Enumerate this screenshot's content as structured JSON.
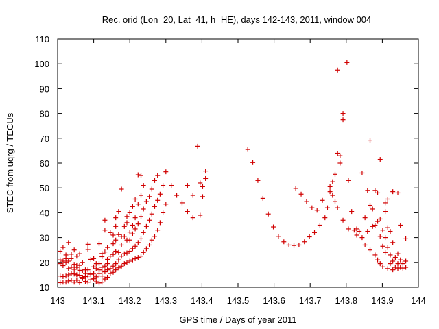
{
  "chart_data": {
    "type": "scatter",
    "title": "Rec. orid (Lon=20, Lat=41, h=HE), days 142-143, 2011, window 004",
    "xlabel": "GPS time / Days of year 2011",
    "ylabel": "STEC from uqrg / TECUs",
    "xlim": [
      143,
      144
    ],
    "ylim": [
      10,
      110
    ],
    "xticks": [
      143,
      143.1,
      143.2,
      143.3,
      143.4,
      143.5,
      143.6,
      143.7,
      143.8,
      143.9,
      144
    ],
    "xtick_labels": [
      "143",
      "143.1",
      "143.2",
      "143.3",
      "143.4",
      "143.5",
      "143.6",
      "143.7",
      "143.8",
      "143.9",
      "144"
    ],
    "yticks": [
      10,
      20,
      30,
      40,
      50,
      60,
      70,
      80,
      90,
      100,
      110
    ],
    "ytick_labels": [
      "10",
      "20",
      "30",
      "40",
      "50",
      "60",
      "70",
      "80",
      "90",
      "100",
      "110"
    ],
    "marker": "+",
    "marker_color": "#d00000",
    "grid": false,
    "legend": "none",
    "points": [
      [
        143.007,
        11.8
      ],
      [
        143.007,
        14.5
      ],
      [
        143.007,
        19.5
      ],
      [
        143.007,
        21.0
      ],
      [
        143.007,
        24.5
      ],
      [
        143.015,
        12.0
      ],
      [
        143.015,
        14.3
      ],
      [
        143.015,
        18.7
      ],
      [
        143.015,
        20.5
      ],
      [
        143.015,
        26.0
      ],
      [
        143.023,
        12.0
      ],
      [
        143.023,
        14.5
      ],
      [
        143.023,
        20.0
      ],
      [
        143.023,
        21.5
      ],
      [
        143.023,
        23.0
      ],
      [
        143.03,
        12.5
      ],
      [
        143.03,
        15.0
      ],
      [
        143.03,
        17.5
      ],
      [
        143.03,
        20.5
      ],
      [
        143.03,
        28.0
      ],
      [
        143.038,
        12.8
      ],
      [
        143.038,
        15.5
      ],
      [
        143.038,
        18.0
      ],
      [
        143.038,
        21.5
      ],
      [
        143.038,
        23.3
      ],
      [
        143.046,
        12.0
      ],
      [
        143.046,
        15.3
      ],
      [
        143.046,
        17.2
      ],
      [
        143.046,
        19.2
      ],
      [
        143.046,
        25.0
      ],
      [
        143.053,
        12.8
      ],
      [
        143.053,
        15.0
      ],
      [
        143.053,
        18.0
      ],
      [
        143.053,
        19.0
      ],
      [
        143.053,
        22.5
      ],
      [
        143.061,
        11.8
      ],
      [
        143.061,
        14.8
      ],
      [
        143.061,
        16.8
      ],
      [
        143.061,
        18.8
      ],
      [
        143.061,
        23.5
      ],
      [
        143.069,
        13.5
      ],
      [
        143.069,
        14.0
      ],
      [
        143.069,
        16.5
      ],
      [
        143.069,
        20.0
      ],
      [
        143.077,
        12.3
      ],
      [
        143.077,
        14.3
      ],
      [
        143.077,
        15.5
      ],
      [
        143.077,
        17.0
      ],
      [
        143.084,
        12.0
      ],
      [
        143.084,
        14.5
      ],
      [
        143.084,
        17.0
      ],
      [
        143.084,
        25.2
      ],
      [
        143.084,
        27.3
      ],
      [
        143.092,
        13.0
      ],
      [
        143.092,
        15.2
      ],
      [
        143.092,
        15.5
      ],
      [
        143.092,
        21.2
      ],
      [
        143.1,
        13.4
      ],
      [
        143.1,
        15.5
      ],
      [
        143.1,
        18.2
      ],
      [
        143.1,
        21.5
      ],
      [
        143.107,
        12.2
      ],
      [
        143.107,
        14.2
      ],
      [
        143.107,
        17.5
      ],
      [
        143.107,
        19.5
      ],
      [
        143.115,
        11.7
      ],
      [
        143.115,
        15.5
      ],
      [
        143.115,
        17.0
      ],
      [
        143.115,
        19.5
      ],
      [
        143.115,
        27.5
      ],
      [
        143.123,
        12.0
      ],
      [
        143.123,
        14.5
      ],
      [
        143.123,
        16.5
      ],
      [
        143.123,
        18.0
      ],
      [
        143.123,
        22.3
      ],
      [
        143.123,
        23.6
      ],
      [
        143.131,
        13.3
      ],
      [
        143.131,
        16.2
      ],
      [
        143.131,
        18.5
      ],
      [
        143.131,
        24.2
      ],
      [
        143.131,
        37.0
      ],
      [
        143.131,
        33.0
      ],
      [
        143.138,
        14.0
      ],
      [
        143.138,
        17.0
      ],
      [
        143.138,
        19.5
      ],
      [
        143.138,
        21.2
      ],
      [
        143.138,
        26.0
      ],
      [
        143.146,
        15.5
      ],
      [
        143.146,
        17.5
      ],
      [
        143.146,
        22.5
      ],
      [
        143.146,
        32.0
      ],
      [
        143.154,
        16.0
      ],
      [
        143.154,
        18.5
      ],
      [
        143.154,
        23.2
      ],
      [
        143.154,
        27.5
      ],
      [
        143.154,
        31.0
      ],
      [
        143.161,
        17.0
      ],
      [
        143.161,
        19.5
      ],
      [
        143.161,
        24.5
      ],
      [
        143.161,
        29.0
      ],
      [
        143.161,
        34.5
      ],
      [
        143.161,
        38.0
      ],
      [
        143.169,
        17.8
      ],
      [
        143.169,
        21.0
      ],
      [
        143.169,
        24.0
      ],
      [
        143.169,
        31.2
      ],
      [
        143.169,
        40.5
      ],
      [
        143.177,
        18.5
      ],
      [
        143.177,
        22.5
      ],
      [
        143.177,
        27.0
      ],
      [
        143.177,
        30.5
      ],
      [
        143.177,
        49.5
      ],
      [
        143.185,
        19.5
      ],
      [
        143.185,
        23.5
      ],
      [
        143.185,
        30.5
      ],
      [
        143.185,
        34.5
      ],
      [
        143.192,
        20.0
      ],
      [
        143.192,
        23.8
      ],
      [
        143.192,
        29.0
      ],
      [
        143.192,
        36.0
      ],
      [
        143.192,
        38.5
      ],
      [
        143.2,
        20.5
      ],
      [
        143.2,
        24.5
      ],
      [
        143.2,
        29.0
      ],
      [
        143.2,
        32.2
      ],
      [
        143.2,
        40.0
      ],
      [
        143.208,
        21.0
      ],
      [
        143.208,
        25.5
      ],
      [
        143.208,
        31.5
      ],
      [
        143.208,
        35.0
      ],
      [
        143.208,
        42.5
      ],
      [
        143.215,
        21.5
      ],
      [
        143.215,
        26.5
      ],
      [
        143.215,
        33.5
      ],
      [
        143.215,
        38.0
      ],
      [
        143.215,
        45.5
      ],
      [
        143.223,
        22.0
      ],
      [
        143.223,
        28.0
      ],
      [
        143.223,
        35.5
      ],
      [
        143.223,
        43.5
      ],
      [
        143.223,
        55.3
      ],
      [
        143.231,
        22.5
      ],
      [
        143.231,
        29.5
      ],
      [
        143.231,
        38.5
      ],
      [
        143.231,
        47.0
      ],
      [
        143.231,
        55.0
      ],
      [
        143.238,
        24.0
      ],
      [
        143.238,
        32.0
      ],
      [
        143.238,
        41.5
      ],
      [
        143.238,
        51.0
      ],
      [
        143.246,
        25.5
      ],
      [
        143.246,
        34.5
      ],
      [
        143.246,
        44.5
      ],
      [
        143.254,
        27.0
      ],
      [
        143.254,
        37.0
      ],
      [
        143.254,
        46.5
      ],
      [
        143.261,
        29.0
      ],
      [
        143.261,
        39.5
      ],
      [
        143.261,
        49.5
      ],
      [
        143.269,
        30.5
      ],
      [
        143.269,
        42.5
      ],
      [
        143.269,
        53.0
      ],
      [
        143.277,
        33.0
      ],
      [
        143.277,
        45.0
      ],
      [
        143.277,
        55.0
      ],
      [
        143.284,
        36.0
      ],
      [
        143.284,
        47.5
      ],
      [
        143.292,
        40.0
      ],
      [
        143.292,
        51.0
      ],
      [
        143.3,
        43.5
      ],
      [
        143.3,
        56.5
      ],
      [
        143.315,
        51.0
      ],
      [
        143.33,
        47.0
      ],
      [
        143.345,
        44.0
      ],
      [
        143.36,
        40.5
      ],
      [
        143.36,
        51.0
      ],
      [
        143.375,
        47.0
      ],
      [
        143.375,
        38.0
      ],
      [
        143.388,
        66.8
      ],
      [
        143.395,
        39.0
      ],
      [
        143.395,
        52.0
      ],
      [
        143.402,
        46.5
      ],
      [
        143.402,
        50.5
      ],
      [
        143.41,
        53.8
      ],
      [
        143.41,
        56.8
      ],
      [
        143.527,
        65.5
      ],
      [
        143.541,
        60.2
      ],
      [
        143.555,
        53.0
      ],
      [
        143.569,
        45.8
      ],
      [
        143.584,
        39.5
      ],
      [
        143.598,
        34.3
      ],
      [
        143.612,
        30.5
      ],
      [
        143.627,
        28.3
      ],
      [
        143.641,
        27.0
      ],
      [
        143.655,
        26.8
      ],
      [
        143.66,
        49.8
      ],
      [
        143.669,
        27.0
      ],
      [
        143.675,
        47.5
      ],
      [
        143.684,
        28.3
      ],
      [
        143.69,
        44.5
      ],
      [
        143.698,
        30.3
      ],
      [
        143.705,
        42.0
      ],
      [
        143.712,
        32.0
      ],
      [
        143.719,
        41.0
      ],
      [
        143.727,
        35.0
      ],
      [
        143.734,
        45.0
      ],
      [
        143.741,
        38.0
      ],
      [
        143.748,
        42.0
      ],
      [
        143.755,
        50.5
      ],
      [
        143.755,
        48.5
      ],
      [
        143.762,
        52.5
      ],
      [
        143.762,
        47.0
      ],
      [
        143.769,
        55.5
      ],
      [
        143.769,
        44.5
      ],
      [
        143.776,
        97.5
      ],
      [
        143.776,
        64.0
      ],
      [
        143.776,
        42.0
      ],
      [
        143.783,
        63.0
      ],
      [
        143.783,
        60.0
      ],
      [
        143.791,
        80.0
      ],
      [
        143.791,
        77.5
      ],
      [
        143.791,
        37.0
      ],
      [
        143.802,
        100.5
      ],
      [
        143.806,
        53.0
      ],
      [
        143.806,
        33.5
      ],
      [
        143.815,
        40.5
      ],
      [
        143.822,
        33.0
      ],
      [
        143.829,
        33.5
      ],
      [
        143.829,
        31.0
      ],
      [
        143.836,
        32.5
      ],
      [
        143.844,
        56.0
      ],
      [
        143.844,
        30.0
      ],
      [
        143.852,
        38.0
      ],
      [
        143.852,
        27.0
      ],
      [
        143.859,
        49.0
      ],
      [
        143.859,
        32.5
      ],
      [
        143.866,
        69.0
      ],
      [
        143.866,
        43.0
      ],
      [
        143.866,
        25.0
      ],
      [
        143.873,
        41.5
      ],
      [
        143.873,
        34.5
      ],
      [
        143.88,
        49.0
      ],
      [
        143.88,
        35.0
      ],
      [
        143.88,
        23.0
      ],
      [
        143.887,
        48.0
      ],
      [
        143.887,
        36.5
      ],
      [
        143.887,
        21.0
      ],
      [
        143.894,
        61.5
      ],
      [
        143.894,
        37.5
      ],
      [
        143.894,
        30.5
      ],
      [
        143.894,
        19.5
      ],
      [
        143.901,
        33.0
      ],
      [
        143.901,
        26.5
      ],
      [
        143.901,
        18.2
      ],
      [
        143.908,
        44.0
      ],
      [
        143.908,
        40.5
      ],
      [
        143.908,
        30.0
      ],
      [
        143.908,
        24.0
      ],
      [
        143.915,
        45.5
      ],
      [
        143.915,
        34.0
      ],
      [
        143.915,
        26.0
      ],
      [
        143.915,
        17.5
      ],
      [
        143.922,
        32.5
      ],
      [
        143.922,
        23.0
      ],
      [
        143.922,
        19.5
      ],
      [
        143.929,
        48.5
      ],
      [
        143.929,
        28.0
      ],
      [
        143.929,
        20.5
      ],
      [
        143.929,
        17.0
      ],
      [
        143.936,
        22.0
      ],
      [
        143.936,
        18.0
      ],
      [
        143.943,
        48.0
      ],
      [
        143.943,
        23.5
      ],
      [
        143.943,
        19.5
      ],
      [
        143.943,
        17.5
      ],
      [
        143.95,
        35.0
      ],
      [
        143.95,
        21.0
      ],
      [
        143.95,
        18.0
      ],
      [
        143.957,
        19.5
      ],
      [
        143.957,
        17.5
      ],
      [
        143.965,
        29.5
      ],
      [
        143.965,
        20.5
      ],
      [
        143.965,
        18.0
      ]
    ]
  }
}
